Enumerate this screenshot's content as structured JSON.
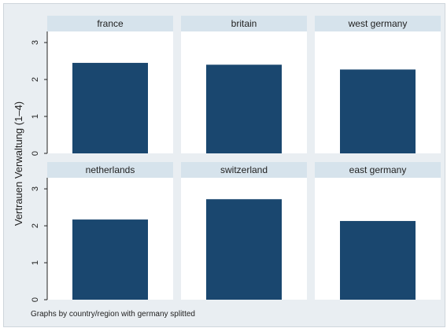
{
  "chart_data": {
    "type": "bar",
    "ylabel": "Vertrauen Verwaltung (1–4)",
    "ylim": [
      0,
      3.3
    ],
    "yticks": [
      0,
      1,
      2,
      3
    ],
    "note": "Graphs by country/region with germany splitted",
    "grid": false,
    "bar_color": "#1a476f",
    "panels": [
      {
        "name": "france",
        "value": 2.45
      },
      {
        "name": "britain",
        "value": 2.4
      },
      {
        "name": "west germany",
        "value": 2.27
      },
      {
        "name": "netherlands",
        "value": 2.17
      },
      {
        "name": "switzerland",
        "value": 2.72
      },
      {
        "name": "east germany",
        "value": 2.13
      }
    ]
  }
}
